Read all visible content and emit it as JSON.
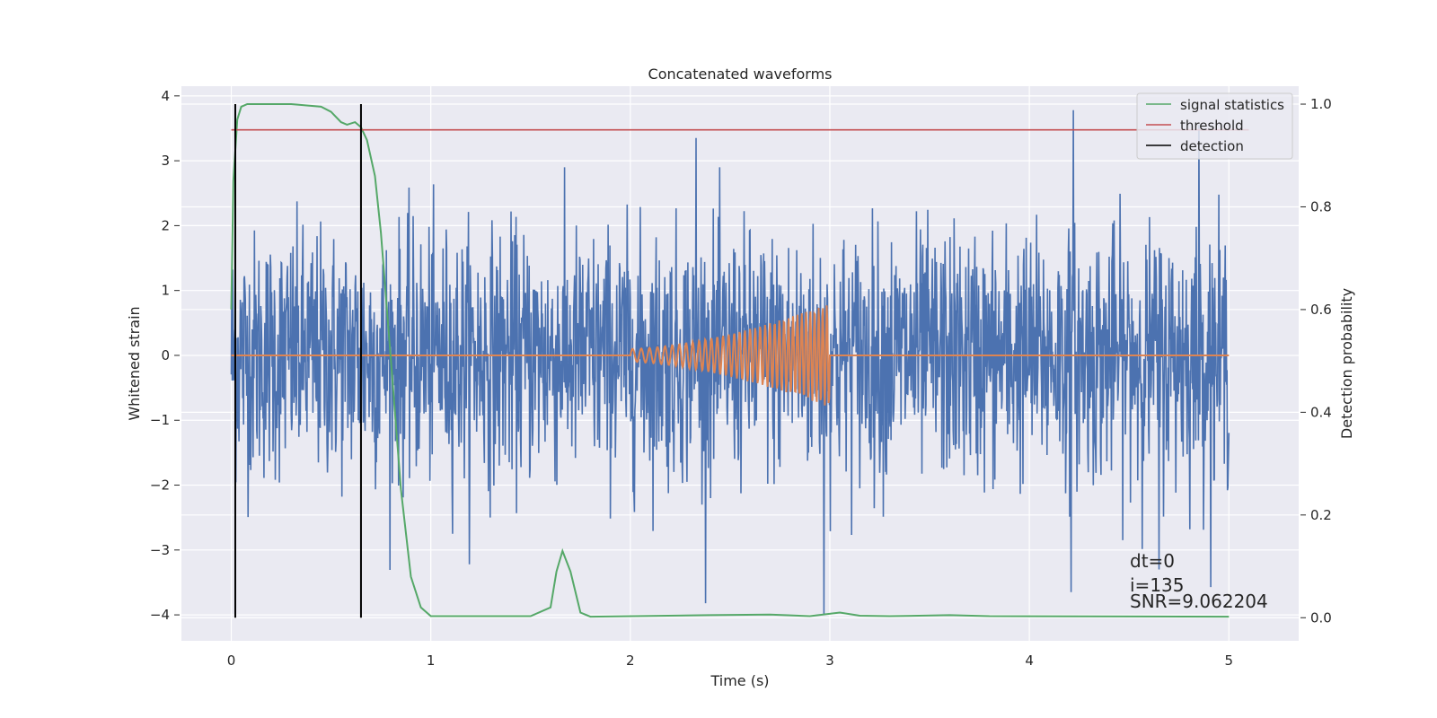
{
  "chart_data": {
    "type": "line",
    "title": "Concatenated waveforms",
    "xlabel": "Time (s)",
    "ylabel": "Whitened strain",
    "y2label": "Detection probability",
    "xlim": [
      -0.25,
      5.35
    ],
    "ylim": [
      -4.4,
      4.15
    ],
    "y2lim": [
      -0.045,
      1.035
    ],
    "xticks": [
      0,
      1,
      2,
      3,
      4,
      5
    ],
    "yticks": [
      -4,
      -3,
      -2,
      -1,
      0,
      1,
      2,
      3,
      4
    ],
    "y2ticks": [
      0.0,
      0.2,
      0.4,
      0.6,
      0.8,
      1.0
    ],
    "xticklabels": [
      "0",
      "1",
      "2",
      "3",
      "4",
      "5"
    ],
    "yticklabels": [
      "−4",
      "−3",
      "−2",
      "−1",
      "0",
      "1",
      "2",
      "3",
      "4"
    ],
    "y2ticklabels": [
      "0.0",
      "0.2",
      "0.4",
      "0.6",
      "0.8",
      "1.0"
    ],
    "grid": true,
    "legend": {
      "position": "top-right",
      "entries": [
        {
          "label": "signal statistics",
          "color": "#55a868"
        },
        {
          "label": "threshold",
          "color": "#c44e52"
        },
        {
          "label": "detection",
          "color": "#000000"
        }
      ]
    },
    "annotations": [
      "dt=0",
      "i=135",
      "SNR=9.062204"
    ],
    "series": [
      {
        "kind": "noise",
        "axis": "left",
        "color": "#4c72b0",
        "x_range": [
          0,
          5
        ],
        "typical_range": [
          -2.0,
          2.0
        ],
        "extremes": {
          "min": -4.0,
          "max": 3.78
        },
        "note_peaks": [
          [
            2.33,
            3.35
          ],
          [
            4.22,
            3.78
          ],
          [
            4.85,
            3.55
          ],
          [
            2.97,
            -4.0
          ],
          [
            4.21,
            -3.65
          ],
          [
            4.65,
            -3.3
          ]
        ]
      },
      {
        "kind": "chirp",
        "axis": "left",
        "color": "#dd8452",
        "x_range": [
          0,
          5
        ],
        "chirp_range": [
          2.0,
          3.0
        ],
        "amplitude_start": 0.1,
        "amplitude_end": 0.8
      },
      {
        "label": "signal statistics",
        "axis": "right",
        "color": "#55a868",
        "x": [
          0,
          0.01,
          0.03,
          0.05,
          0.08,
          0.15,
          0.3,
          0.45,
          0.5,
          0.55,
          0.58,
          0.62,
          0.65,
          0.68,
          0.72,
          0.75,
          0.8,
          0.85,
          0.9,
          0.95,
          1.0,
          1.5,
          1.6,
          1.63,
          1.66,
          1.7,
          1.75,
          1.8,
          2.4,
          2.7,
          2.9,
          3.05,
          3.15,
          3.3,
          3.6,
          3.8,
          5.0
        ],
        "y": [
          0.6,
          0.85,
          0.97,
          0.995,
          1.0,
          1.0,
          1.0,
          0.995,
          0.985,
          0.965,
          0.96,
          0.965,
          0.955,
          0.93,
          0.86,
          0.75,
          0.5,
          0.25,
          0.08,
          0.02,
          0.003,
          0.003,
          0.02,
          0.09,
          0.13,
          0.09,
          0.01,
          0.002,
          0.005,
          0.006,
          0.003,
          0.01,
          0.004,
          0.003,
          0.005,
          0.003,
          0.002
        ]
      },
      {
        "label": "threshold",
        "axis": "right",
        "color": "#c44e52",
        "x": [
          0,
          5.1
        ],
        "y": [
          0.95,
          0.95
        ]
      },
      {
        "label": "detection",
        "axis": "right",
        "color": "#000000",
        "kind": "vlines",
        "x": [
          0.02,
          0.65
        ],
        "y_range": [
          0.0,
          1.0
        ]
      }
    ]
  }
}
